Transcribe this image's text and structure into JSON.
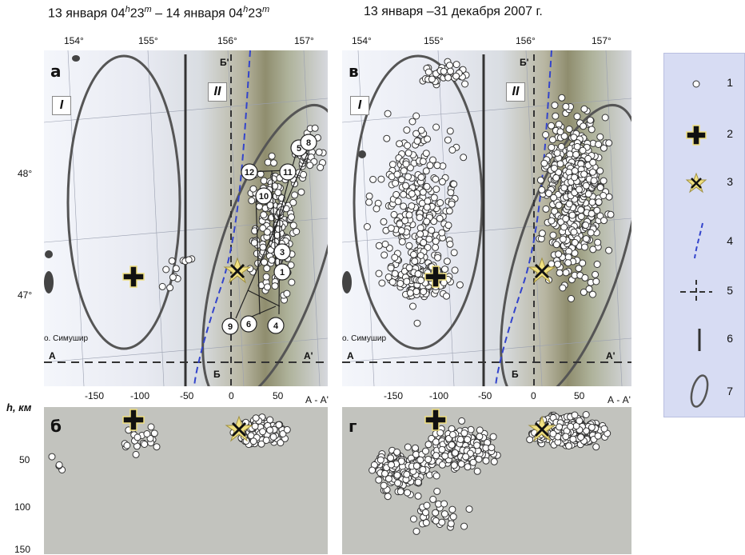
{
  "titles": {
    "left": "13 января 04",
    "left_sup1": "h",
    "left_mid": "23",
    "left_sup2": "m",
    "left_dash": " – 14 января 04",
    "left_sup3": "h",
    "left_mid2": "23",
    "left_sup4": "m",
    "right": "13 января –31 декабря 2007 г."
  },
  "lon_ticks": [
    "154°",
    "155°",
    "156°",
    "157°"
  ],
  "lat_ticks": [
    "48°",
    "47°"
  ],
  "panel_labels": {
    "a": "а",
    "b": "б",
    "v": "в",
    "g": "г"
  },
  "zones": {
    "I": "I",
    "II": "II"
  },
  "profile_labels": {
    "A": "А",
    "A2": "А'",
    "B": "Б",
    "B2": "Б'",
    "AA": "А - А'"
  },
  "island": "о. Симушир",
  "x_ticks": [
    "-150",
    "-100",
    "-50",
    "0",
    "50"
  ],
  "depth_axis": {
    "label": "h, км",
    "ticks": [
      "50",
      "100",
      "150"
    ]
  },
  "numbered_events": [
    "1",
    "3",
    "4",
    "5",
    "6",
    "8",
    "9",
    "10",
    "11",
    "12"
  ],
  "legend": [
    "1",
    "2",
    "3",
    "4",
    "5",
    "6",
    "7"
  ],
  "colors": {
    "star": "#f0e080",
    "ellipse": "#555555",
    "trench": "#3344cc",
    "legend_bg": "#d7dcf3"
  }
}
